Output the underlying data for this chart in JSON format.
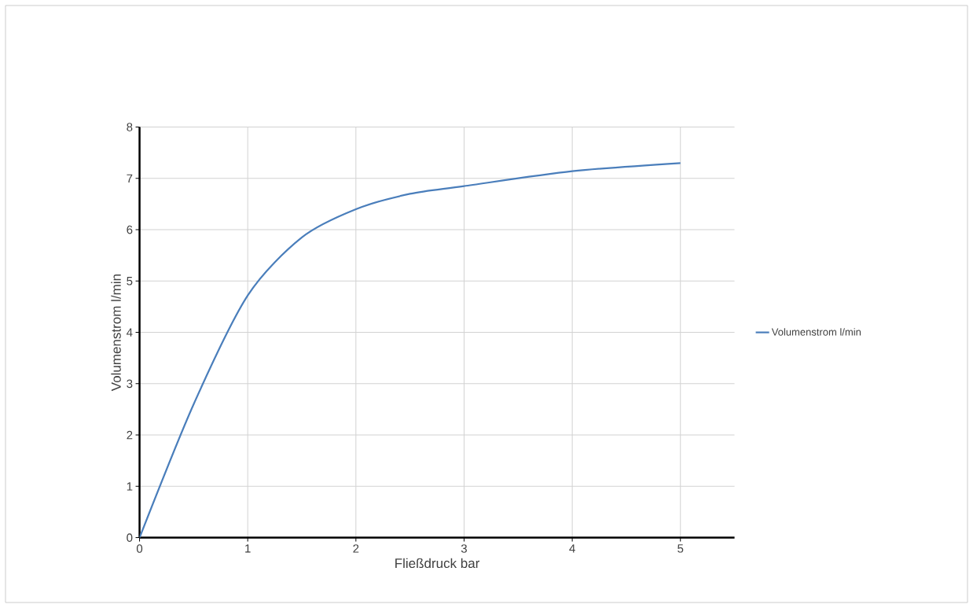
{
  "chart_data": {
    "type": "line",
    "xlabel": "Fließdruck bar",
    "ylabel": "Volumenstrom l/min",
    "x": [
      0,
      0.5,
      1,
      1.5,
      2,
      2.5,
      3,
      4,
      5
    ],
    "series": [
      {
        "name": "Volumenstrom l/min",
        "color": "#4a7ebb",
        "values": [
          0,
          2.6,
          4.72,
          5.85,
          6.4,
          6.7,
          6.85,
          7.14,
          7.3
        ]
      }
    ],
    "xlim": [
      0,
      5.5
    ],
    "ylim": [
      0,
      8
    ],
    "xticks": [
      0,
      1,
      2,
      3,
      4,
      5
    ],
    "yticks": [
      0,
      1,
      2,
      3,
      4,
      5,
      6,
      7,
      8
    ],
    "grid": true,
    "legend": "right",
    "marker": "none",
    "line_style": "solid"
  }
}
